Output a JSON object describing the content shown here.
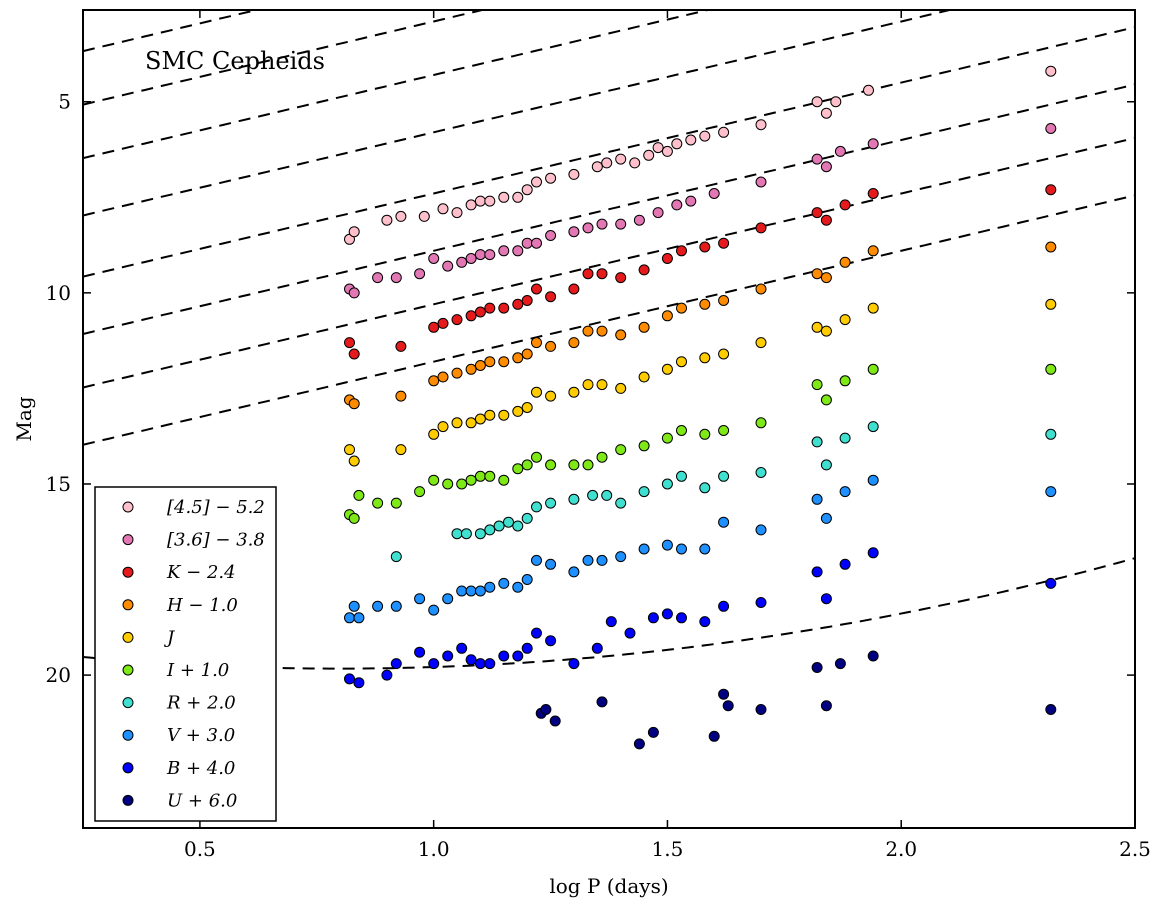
{
  "chart_data": {
    "type": "scatter",
    "title": "",
    "annotation": "SMC Cepheids",
    "xlabel": "log P (days)",
    "ylabel": "Mag",
    "xlim": [
      0.25,
      2.5
    ],
    "ylim": [
      24.0,
      2.6
    ],
    "y_inverted": true,
    "xticks": [
      0.5,
      1.0,
      1.5,
      2.0,
      2.5
    ],
    "xtick_labels": [
      "0.5",
      "1.0",
      "1.5",
      "2.0",
      "2.5"
    ],
    "yticks": [
      5,
      10,
      15,
      20
    ],
    "ytick_labels": [
      "5",
      "10",
      "15",
      "20"
    ],
    "grid": false,
    "legend_position": "lower-left",
    "series": [
      {
        "name": "[4.5] − 5.2",
        "color": "#FFC0CB",
        "fit": {
          "a": -2.9,
          "b": 2.9,
          "c": 0.0
        },
        "points": [
          [
            0.82,
            8.6
          ],
          [
            0.83,
            8.4
          ],
          [
            0.9,
            8.1
          ],
          [
            0.93,
            8.0
          ],
          [
            0.98,
            8.0
          ],
          [
            1.02,
            7.8
          ],
          [
            1.05,
            7.9
          ],
          [
            1.08,
            7.7
          ],
          [
            1.1,
            7.6
          ],
          [
            1.12,
            7.6
          ],
          [
            1.15,
            7.5
          ],
          [
            1.18,
            7.5
          ],
          [
            1.2,
            7.3
          ],
          [
            1.22,
            7.1
          ],
          [
            1.25,
            7.0
          ],
          [
            1.3,
            6.9
          ],
          [
            1.35,
            6.7
          ],
          [
            1.37,
            6.6
          ],
          [
            1.4,
            6.5
          ],
          [
            1.43,
            6.6
          ],
          [
            1.46,
            6.4
          ],
          [
            1.48,
            6.2
          ],
          [
            1.5,
            6.3
          ],
          [
            1.52,
            6.1
          ],
          [
            1.55,
            6.0
          ],
          [
            1.58,
            5.9
          ],
          [
            1.62,
            5.8
          ],
          [
            1.7,
            5.6
          ],
          [
            1.82,
            5.0
          ],
          [
            1.84,
            5.3
          ],
          [
            1.86,
            5.0
          ],
          [
            1.93,
            4.7
          ],
          [
            2.32,
            4.2
          ]
        ]
      },
      {
        "name": "[3.6] − 3.8",
        "color": "#E377B4",
        "fit": {
          "a": -2.9,
          "b": 4.4,
          "c": 0.0
        },
        "points": [
          [
            0.82,
            9.9
          ],
          [
            0.83,
            10.0
          ],
          [
            0.88,
            9.6
          ],
          [
            0.92,
            9.6
          ],
          [
            0.97,
            9.5
          ],
          [
            1.0,
            9.1
          ],
          [
            1.03,
            9.3
          ],
          [
            1.06,
            9.2
          ],
          [
            1.08,
            9.1
          ],
          [
            1.1,
            9.0
          ],
          [
            1.12,
            9.0
          ],
          [
            1.15,
            8.9
          ],
          [
            1.18,
            8.9
          ],
          [
            1.2,
            8.7
          ],
          [
            1.22,
            8.7
          ],
          [
            1.25,
            8.5
          ],
          [
            1.3,
            8.4
          ],
          [
            1.33,
            8.3
          ],
          [
            1.36,
            8.2
          ],
          [
            1.4,
            8.2
          ],
          [
            1.44,
            8.1
          ],
          [
            1.48,
            7.9
          ],
          [
            1.52,
            7.7
          ],
          [
            1.55,
            7.6
          ],
          [
            1.6,
            7.4
          ],
          [
            1.7,
            7.1
          ],
          [
            1.82,
            6.5
          ],
          [
            1.84,
            6.7
          ],
          [
            1.87,
            6.3
          ],
          [
            1.94,
            6.1
          ],
          [
            2.32,
            5.7
          ]
        ]
      },
      {
        "name": "K − 2.4",
        "color": "#E41A1C",
        "fit": {
          "a": -2.9,
          "b": 5.8,
          "c": 0.0
        },
        "points": [
          [
            0.82,
            11.3
          ],
          [
            0.83,
            11.6
          ],
          [
            0.93,
            11.4
          ],
          [
            1.0,
            10.9
          ],
          [
            1.02,
            10.8
          ],
          [
            1.05,
            10.7
          ],
          [
            1.08,
            10.6
          ],
          [
            1.1,
            10.5
          ],
          [
            1.12,
            10.4
          ],
          [
            1.15,
            10.4
          ],
          [
            1.18,
            10.3
          ],
          [
            1.2,
            10.2
          ],
          [
            1.22,
            9.9
          ],
          [
            1.25,
            10.1
          ],
          [
            1.3,
            9.9
          ],
          [
            1.33,
            9.5
          ],
          [
            1.36,
            9.5
          ],
          [
            1.4,
            9.6
          ],
          [
            1.45,
            9.4
          ],
          [
            1.5,
            9.1
          ],
          [
            1.53,
            8.9
          ],
          [
            1.58,
            8.8
          ],
          [
            1.62,
            8.7
          ],
          [
            1.7,
            8.3
          ],
          [
            1.82,
            7.9
          ],
          [
            1.84,
            8.1
          ],
          [
            1.88,
            7.7
          ],
          [
            1.94,
            7.4
          ],
          [
            2.32,
            7.3
          ]
        ]
      },
      {
        "name": "H − 1.0",
        "color": "#FF8C00",
        "fit": {
          "a": -2.9,
          "b": 7.2,
          "c": 0.0
        },
        "points": [
          [
            0.82,
            12.8
          ],
          [
            0.83,
            12.9
          ],
          [
            0.93,
            12.7
          ],
          [
            1.0,
            12.3
          ],
          [
            1.02,
            12.2
          ],
          [
            1.05,
            12.1
          ],
          [
            1.08,
            12.0
          ],
          [
            1.1,
            11.9
          ],
          [
            1.12,
            11.8
          ],
          [
            1.15,
            11.8
          ],
          [
            1.18,
            11.7
          ],
          [
            1.2,
            11.6
          ],
          [
            1.22,
            11.3
          ],
          [
            1.25,
            11.4
          ],
          [
            1.3,
            11.3
          ],
          [
            1.33,
            11.0
          ],
          [
            1.36,
            11.0
          ],
          [
            1.4,
            11.1
          ],
          [
            1.45,
            10.9
          ],
          [
            1.5,
            10.6
          ],
          [
            1.53,
            10.4
          ],
          [
            1.58,
            10.3
          ],
          [
            1.62,
            10.2
          ],
          [
            1.7,
            9.9
          ],
          [
            1.82,
            9.5
          ],
          [
            1.84,
            9.6
          ],
          [
            1.88,
            9.2
          ],
          [
            1.94,
            8.9
          ],
          [
            2.32,
            8.8
          ]
        ]
      },
      {
        "name": "J",
        "color": "#FFCC00",
        "fit": {
          "a": -2.9,
          "b": 8.7,
          "c": 0.0
        },
        "points": [
          [
            0.82,
            14.1
          ],
          [
            0.83,
            14.4
          ],
          [
            0.93,
            14.1
          ],
          [
            1.0,
            13.7
          ],
          [
            1.02,
            13.5
          ],
          [
            1.05,
            13.4
          ],
          [
            1.08,
            13.4
          ],
          [
            1.1,
            13.3
          ],
          [
            1.12,
            13.2
          ],
          [
            1.15,
            13.2
          ],
          [
            1.18,
            13.1
          ],
          [
            1.2,
            13.0
          ],
          [
            1.22,
            12.6
          ],
          [
            1.25,
            12.7
          ],
          [
            1.3,
            12.6
          ],
          [
            1.33,
            12.4
          ],
          [
            1.36,
            12.4
          ],
          [
            1.4,
            12.5
          ],
          [
            1.45,
            12.2
          ],
          [
            1.5,
            12.0
          ],
          [
            1.53,
            11.8
          ],
          [
            1.58,
            11.7
          ],
          [
            1.62,
            11.6
          ],
          [
            1.7,
            11.3
          ],
          [
            1.82,
            10.9
          ],
          [
            1.84,
            11.0
          ],
          [
            1.88,
            10.7
          ],
          [
            1.94,
            10.4
          ],
          [
            2.32,
            10.3
          ]
        ]
      },
      {
        "name": "I + 1.0",
        "color": "#7FE817",
        "fit": {
          "a": -2.9,
          "b": 10.3,
          "c": 0.0
        },
        "points": [
          [
            0.82,
            15.8
          ],
          [
            0.83,
            15.9
          ],
          [
            0.84,
            15.3
          ],
          [
            0.88,
            15.5
          ],
          [
            0.92,
            15.5
          ],
          [
            0.97,
            15.2
          ],
          [
            1.0,
            14.9
          ],
          [
            1.03,
            15.0
          ],
          [
            1.06,
            15.0
          ],
          [
            1.08,
            14.9
          ],
          [
            1.1,
            14.8
          ],
          [
            1.12,
            14.8
          ],
          [
            1.15,
            14.9
          ],
          [
            1.18,
            14.6
          ],
          [
            1.2,
            14.5
          ],
          [
            1.22,
            14.3
          ],
          [
            1.25,
            14.5
          ],
          [
            1.3,
            14.5
          ],
          [
            1.33,
            14.5
          ],
          [
            1.36,
            14.3
          ],
          [
            1.4,
            14.1
          ],
          [
            1.45,
            14.0
          ],
          [
            1.5,
            13.8
          ],
          [
            1.53,
            13.6
          ],
          [
            1.58,
            13.7
          ],
          [
            1.62,
            13.6
          ],
          [
            1.7,
            13.4
          ],
          [
            1.82,
            12.4
          ],
          [
            1.84,
            12.8
          ],
          [
            1.88,
            12.3
          ],
          [
            1.94,
            12.0
          ],
          [
            2.32,
            12.0
          ]
        ]
      },
      {
        "name": "R + 2.0",
        "color": "#40E0D0",
        "fit": {
          "a": -2.9,
          "b": 11.8,
          "c": 0.0
        },
        "points": [
          [
            0.92,
            16.9
          ],
          [
            1.05,
            16.3
          ],
          [
            1.07,
            16.3
          ],
          [
            1.1,
            16.3
          ],
          [
            1.12,
            16.2
          ],
          [
            1.14,
            16.1
          ],
          [
            1.16,
            16.0
          ],
          [
            1.18,
            16.1
          ],
          [
            1.2,
            15.9
          ],
          [
            1.22,
            15.6
          ],
          [
            1.25,
            15.5
          ],
          [
            1.3,
            15.4
          ],
          [
            1.34,
            15.3
          ],
          [
            1.37,
            15.3
          ],
          [
            1.4,
            15.5
          ],
          [
            1.45,
            15.2
          ],
          [
            1.5,
            15.0
          ],
          [
            1.53,
            14.8
          ],
          [
            1.58,
            15.1
          ],
          [
            1.62,
            14.8
          ],
          [
            1.7,
            14.7
          ],
          [
            1.82,
            13.9
          ],
          [
            1.84,
            14.5
          ],
          [
            1.88,
            13.8
          ],
          [
            1.94,
            13.5
          ],
          [
            2.32,
            13.7
          ]
        ]
      },
      {
        "name": "V + 3.0",
        "color": "#1E90FF",
        "fit": {
          "a": -2.9,
          "b": 13.2,
          "c": 0.0
        },
        "points": [
          [
            0.82,
            18.5
          ],
          [
            0.83,
            18.2
          ],
          [
            0.84,
            18.5
          ],
          [
            0.88,
            18.2
          ],
          [
            0.92,
            18.2
          ],
          [
            0.97,
            18.0
          ],
          [
            1.0,
            18.3
          ],
          [
            1.03,
            18.0
          ],
          [
            1.06,
            17.8
          ],
          [
            1.08,
            17.8
          ],
          [
            1.1,
            17.8
          ],
          [
            1.12,
            17.7
          ],
          [
            1.15,
            17.6
          ],
          [
            1.18,
            17.7
          ],
          [
            1.2,
            17.5
          ],
          [
            1.22,
            17.0
          ],
          [
            1.25,
            17.1
          ],
          [
            1.3,
            17.3
          ],
          [
            1.33,
            17.0
          ],
          [
            1.36,
            17.0
          ],
          [
            1.4,
            16.9
          ],
          [
            1.45,
            16.7
          ],
          [
            1.5,
            16.6
          ],
          [
            1.53,
            16.7
          ],
          [
            1.58,
            16.7
          ],
          [
            1.62,
            16.0
          ],
          [
            1.7,
            16.2
          ],
          [
            1.82,
            15.4
          ],
          [
            1.84,
            15.9
          ],
          [
            1.88,
            15.2
          ],
          [
            1.94,
            14.9
          ],
          [
            2.32,
            15.2
          ]
        ]
      },
      {
        "name": "B + 4.0",
        "color": "#0000FF",
        "fit": {
          "a": -2.9,
          "b": 14.7,
          "c": 0.0
        },
        "points": [
          [
            0.82,
            20.1
          ],
          [
            0.84,
            20.2
          ],
          [
            0.9,
            20.0
          ],
          [
            0.92,
            19.7
          ],
          [
            0.97,
            19.4
          ],
          [
            1.0,
            19.7
          ],
          [
            1.03,
            19.5
          ],
          [
            1.06,
            19.3
          ],
          [
            1.08,
            19.6
          ],
          [
            1.1,
            19.7
          ],
          [
            1.12,
            19.7
          ],
          [
            1.15,
            19.5
          ],
          [
            1.18,
            19.5
          ],
          [
            1.2,
            19.3
          ],
          [
            1.22,
            18.9
          ],
          [
            1.25,
            19.1
          ],
          [
            1.3,
            19.7
          ],
          [
            1.35,
            19.3
          ],
          [
            1.38,
            18.6
          ],
          [
            1.42,
            18.9
          ],
          [
            1.47,
            18.5
          ],
          [
            1.5,
            18.4
          ],
          [
            1.53,
            18.5
          ],
          [
            1.58,
            18.6
          ],
          [
            1.62,
            18.2
          ],
          [
            1.7,
            18.1
          ],
          [
            1.82,
            17.3
          ],
          [
            1.84,
            18.0
          ],
          [
            1.88,
            17.1
          ],
          [
            1.94,
            16.8
          ],
          [
            2.32,
            17.6
          ]
        ]
      },
      {
        "name": "U + 6.0",
        "color": "#000080",
        "fit": {
          "a": -1.6,
          "b": 21.75,
          "c": -1.0
        },
        "points": [
          [
            1.23,
            21.0
          ],
          [
            1.24,
            20.9
          ],
          [
            1.26,
            21.2
          ],
          [
            1.36,
            20.7
          ],
          [
            1.44,
            21.8
          ],
          [
            1.47,
            21.5
          ],
          [
            1.6,
            21.6
          ],
          [
            1.62,
            20.5
          ],
          [
            1.63,
            20.8
          ],
          [
            1.7,
            20.9
          ],
          [
            1.82,
            19.8
          ],
          [
            1.84,
            20.8
          ],
          [
            1.87,
            19.7
          ],
          [
            1.94,
            19.5
          ],
          [
            2.32,
            20.9
          ]
        ]
      }
    ]
  }
}
